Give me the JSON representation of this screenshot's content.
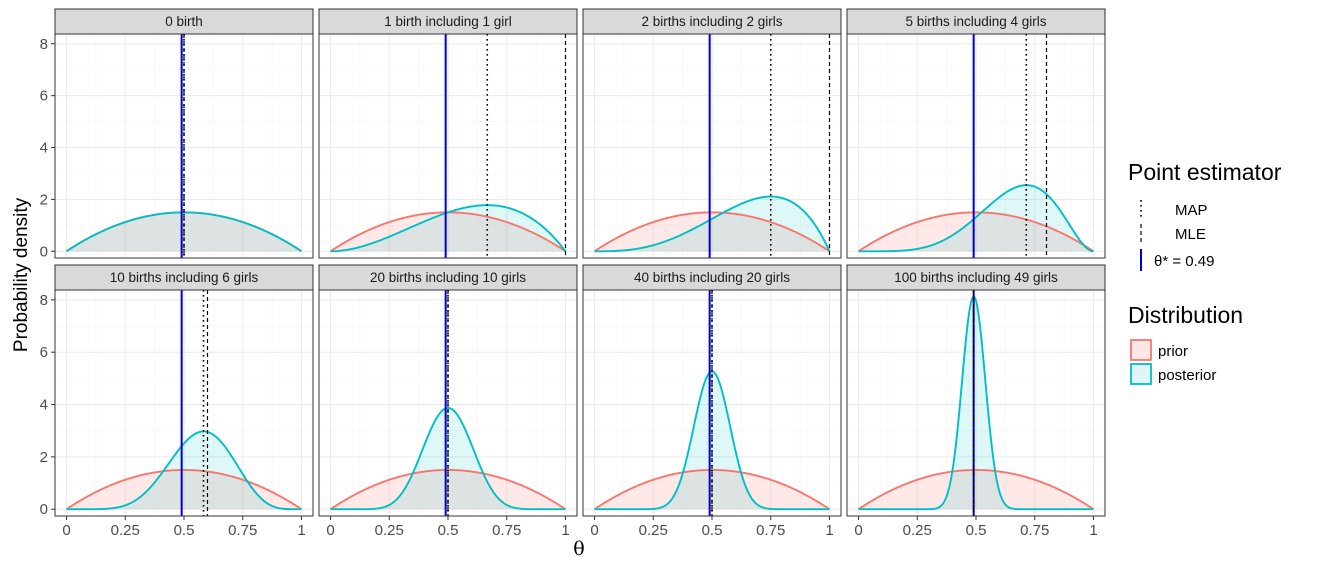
{
  "chart_data": {
    "type": "area",
    "facet_layout": "2x4",
    "xlabel": "θ",
    "ylabel": "Probability density",
    "xlim": [
      0,
      1
    ],
    "ylim": [
      0,
      8.3
    ],
    "x_ticks": [
      "0",
      "0.25",
      "0.5",
      "0.75",
      "1"
    ],
    "x_tick_values": [
      0,
      0.25,
      0.5,
      0.75,
      1
    ],
    "y_ticks": [
      "0",
      "2",
      "4",
      "6",
      "8"
    ],
    "y_tick_values": [
      0,
      2,
      4,
      6,
      8
    ],
    "grid": true,
    "prior": {
      "alpha": 2,
      "beta": 2
    },
    "true_theta": 0.49,
    "panels": [
      {
        "title": "0 birth",
        "n": 0,
        "k": 0,
        "map": 0.5,
        "mle": 0.5
      },
      {
        "title": "1 birth including 1 girl",
        "n": 1,
        "k": 1,
        "map": 0.667,
        "mle": 1.0
      },
      {
        "title": "2 births including 2 girls",
        "n": 2,
        "k": 2,
        "map": 0.75,
        "mle": 1.0
      },
      {
        "title": "5 births including 4 girls",
        "n": 5,
        "k": 4,
        "map": 0.714,
        "mle": 0.8
      },
      {
        "title": "10 births including 6 girls",
        "n": 10,
        "k": 6,
        "map": 0.583,
        "mle": 0.6
      },
      {
        "title": "20 births including 10 girls",
        "n": 20,
        "k": 10,
        "map": 0.5,
        "mle": 0.5
      },
      {
        "title": "40 births including 20 girls",
        "n": 40,
        "k": 20,
        "map": 0.5,
        "mle": 0.5
      },
      {
        "title": "100 births including 49 girls",
        "n": 100,
        "k": 49,
        "map": 0.49,
        "mle": 0.49
      }
    ],
    "legend_placement": "right",
    "legends": [
      {
        "title": "Point estimator",
        "items": [
          {
            "label": "MAP",
            "linetype": "dotted",
            "color": "#000000"
          },
          {
            "label": "MLE",
            "linetype": "dashed",
            "color": "#000000"
          },
          {
            "label": "θ* = 0.49",
            "linetype": "solid",
            "color": "#0000cc"
          }
        ]
      },
      {
        "title": "Distribution",
        "items": [
          {
            "label": "prior",
            "stroke": "#f8766d",
            "fill": "#fde8e6"
          },
          {
            "label": "posterior",
            "stroke": "#00bfc4",
            "fill": "#e0f5f5"
          }
        ]
      }
    ]
  }
}
